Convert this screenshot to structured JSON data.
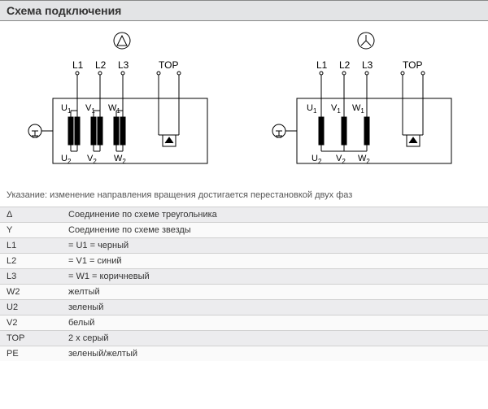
{
  "title": "Схема подключения",
  "diagram_labels": {
    "L1": "L1",
    "L2": "L2",
    "L3": "L3",
    "TOP": "TOP",
    "U1": "U",
    "U1s": "1",
    "V1": "V",
    "V1s": "1",
    "W1": "W",
    "W1s": "1",
    "U2": "U",
    "U2s": "2",
    "V2": "V",
    "V2s": "2",
    "W2": "W",
    "W2s": "2"
  },
  "note": "Указание: изменение направления вращения достигается перестановкой двух фаз",
  "legend": [
    {
      "k": "Δ",
      "v": "Соединение по схеме треугольника"
    },
    {
      "k": "Y",
      "v": "Соединение по схеме звезды"
    },
    {
      "k": "L1",
      "v": "= U1 = черный"
    },
    {
      "k": "L2",
      "v": "= V1 = синий"
    },
    {
      "k": "L3",
      "v": "= W1 = коричневый"
    },
    {
      "k": "W2",
      "v": "желтый"
    },
    {
      "k": "U2",
      "v": "зеленый"
    },
    {
      "k": "V2",
      "v": "белый"
    },
    {
      "k": "TOP",
      "v": "2 x серый"
    },
    {
      "k": "PE",
      "v": "зеленый/желтый"
    }
  ],
  "style": {
    "stroke": "#000",
    "stroke_width": 1,
    "coil_fill": "#000",
    "font": "11px Arial",
    "sub_font": "8px Arial"
  }
}
